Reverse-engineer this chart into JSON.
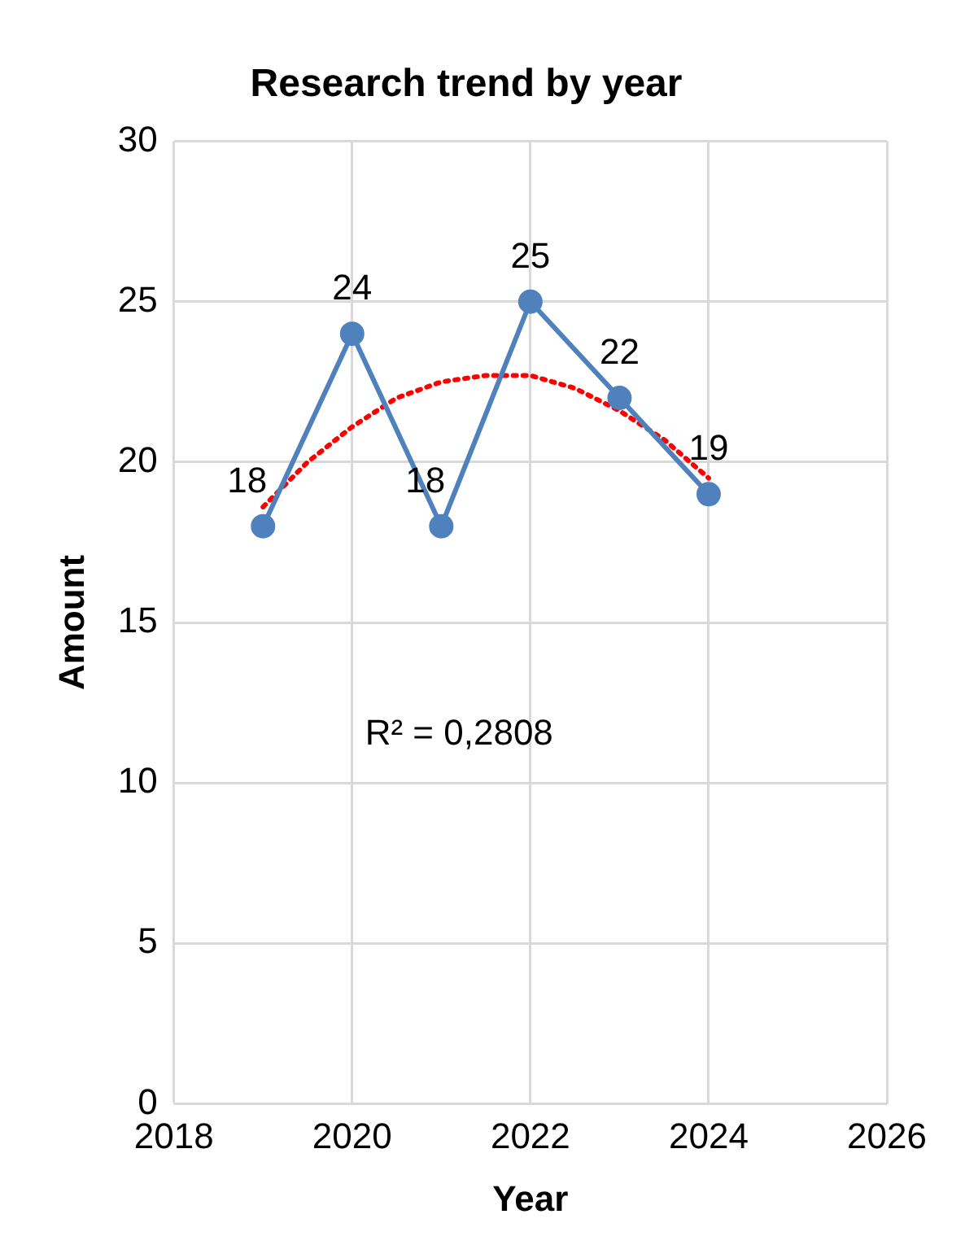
{
  "chart_data": {
    "type": "line",
    "title": "Research trend by year",
    "xlabel": "Year",
    "ylabel": "Amount",
    "xlim": [
      2018,
      2026
    ],
    "xticks": [
      2018,
      2020,
      2022,
      2024,
      2026
    ],
    "ylim": [
      0,
      30
    ],
    "yticks": [
      0,
      5,
      10,
      15,
      20,
      25,
      30
    ],
    "grid": true,
    "legend": false,
    "series": [
      {
        "color": "#4f81bd",
        "marker": "circle",
        "line_style": "solid",
        "x": [
          2019,
          2020,
          2021,
          2022,
          2023,
          2024
        ],
        "values": [
          18,
          24,
          18,
          25,
          22,
          19
        ],
        "value_labels": [
          "18",
          "24",
          "18",
          "25",
          "22",
          "19"
        ]
      },
      {
        "color": "#ff0000",
        "marker": "none",
        "line_style": "dotted",
        "x": [
          2019,
          2019.5,
          2020,
          2020.5,
          2021,
          2021.5,
          2022,
          2022.5,
          2023,
          2023.5,
          2024
        ],
        "values": [
          18.6,
          20.0,
          21.1,
          22.0,
          22.5,
          22.7,
          22.7,
          22.3,
          21.6,
          20.7,
          19.5
        ]
      }
    ],
    "annotations": [
      "R² = 0,2808"
    ]
  }
}
